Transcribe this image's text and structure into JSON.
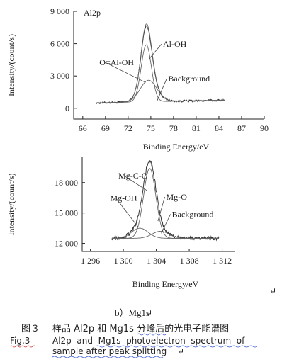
{
  "chart_data": [
    {
      "type": "line",
      "panel_label": "Al2p",
      "xlabel": "Binding Energy/eV",
      "ylabel": "Intensity/(count/s)",
      "xlim": [
        64.8,
        90
      ],
      "ylim": [
        -1000,
        9000
      ],
      "x_ticks": [
        66,
        69,
        72,
        75,
        78,
        81,
        84,
        87,
        90
      ],
      "x_tick_labels": [
        "66",
        "69",
        "72",
        "75",
        "78",
        "81",
        "84",
        "87",
        "90"
      ],
      "y_ticks": [
        0,
        3000,
        6000,
        9000
      ],
      "y_tick_labels": [
        "0",
        "3 000",
        "6 000",
        "9 000"
      ],
      "baseline_y": 500,
      "x_range": [
        67.8,
        84.8
      ],
      "series": [
        {
          "key": "raw",
          "peaks": [
            [
              74.4,
              5200,
              0.68
            ],
            [
              74.7,
              1900,
              1.1
            ]
          ],
          "noise": 90,
          "slope": 15
        },
        {
          "key": "alohh",
          "peaks": [
            [
              74.4,
              5300,
              0.68
            ]
          ],
          "slope": 15
        },
        {
          "key": "oaloh",
          "peaks": [
            [
              74.7,
              2000,
              1.1
            ]
          ],
          "slope": 15
        },
        {
          "key": "envelope",
          "peaks": [
            [
              74.4,
              5300,
              0.68
            ],
            [
              74.7,
              2000,
              1.1
            ]
          ],
          "slope": 15
        }
      ],
      "annotations": [
        {
          "text": "Al-OH",
          "x": 76.6,
          "y": 5700,
          "arrow_to": [
            74.8,
            4600
          ]
        },
        {
          "text": "O=Al-OH",
          "x": 68.2,
          "y": 4000,
          "arrow_to": [
            74.3,
            2400
          ]
        },
        {
          "text": "Background",
          "x": 77.3,
          "y": 2500,
          "arrow_to": [
            75.8,
            650
          ]
        }
      ]
    },
    {
      "type": "line",
      "panel_label": "",
      "xlabel": "Binding Energy/eV",
      "ylabel": "Intensity/(count/s)",
      "xlim": [
        1295,
        1313.5
      ],
      "ylim": [
        11200,
        20500
      ],
      "x_ticks": [
        1296,
        1300,
        1304,
        1308,
        1312
      ],
      "x_tick_labels": [
        "1 296",
        "1 300",
        "1 304",
        "1 308",
        "1 312"
      ],
      "y_ticks": [
        12000,
        15000,
        18000
      ],
      "y_tick_labels": [
        "12 000",
        "15 000",
        "18 000"
      ],
      "baseline_y": 12500,
      "x_range": [
        1298.6,
        1311.6
      ],
      "series": [
        {
          "key": "raw",
          "peaks": [
            [
              1303.2,
              6900,
              0.75
            ],
            [
              1302.0,
              1000,
              1.0
            ],
            [
              1304.5,
              700,
              1.0
            ]
          ],
          "noise": 180,
          "slope": 0
        },
        {
          "key": "mgco",
          "peaks": [
            [
              1303.2,
              6900,
              0.75
            ]
          ],
          "slope": 0
        },
        {
          "key": "mgoh",
          "peaks": [
            [
              1302.0,
              1000,
              1.0
            ]
          ],
          "slope": 0
        },
        {
          "key": "mgo",
          "peaks": [
            [
              1304.5,
              700,
              1.0
            ]
          ],
          "slope": 0
        }
      ],
      "annotations": [
        {
          "text": "Mg-C-O",
          "x": 1299.4,
          "y": 18400,
          "arrow_to": [
            1302.9,
            17200
          ]
        },
        {
          "text": "Mg-OH",
          "x": 1298.4,
          "y": 16200,
          "arrow_to": [
            1301.8,
            13600
          ]
        },
        {
          "text": "Mg-O",
          "x": 1305.2,
          "y": 16300,
          "arrow_to": [
            1304.2,
            14200
          ]
        },
        {
          "text": "Background",
          "x": 1305.9,
          "y": 14600,
          "arrow_to": [
            1304.6,
            13000
          ]
        }
      ]
    }
  ],
  "captions": {
    "panel_b": "b）Mg1s",
    "cn_label": "图３",
    "cn_text": "样品 Al2p 和 Mg1s 分峰后的光电子能谱图",
    "en_label": "Fig.3",
    "en_line1": "Al2p  and  Mg1s  photoelectron  spectrum  of",
    "en_line2": "sample after peak splitting"
  },
  "colors": {
    "axis": "#222222",
    "trace": "#333333",
    "fit": "#666666",
    "wavy_underline_blue": "#3b5bd6",
    "wavy_underline_red": "#d13a3a"
  }
}
